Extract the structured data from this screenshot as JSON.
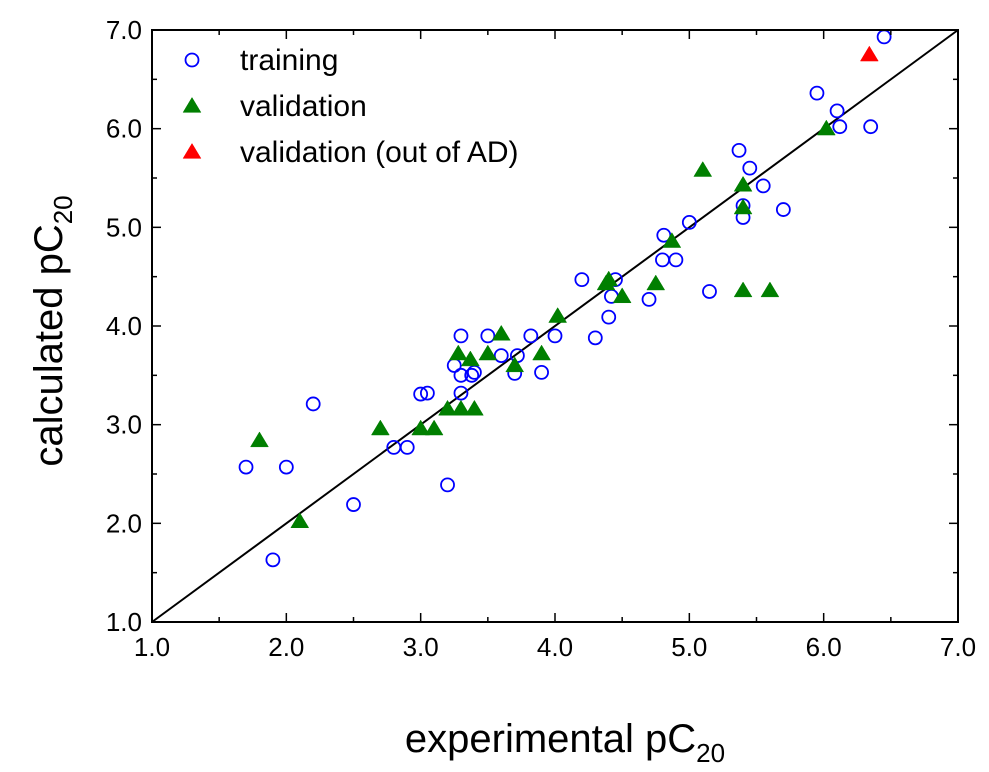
{
  "chart_data": {
    "type": "scatter",
    "xlabel": "experimental pC",
    "xlabel_sub": "20",
    "ylabel": "calculated pC",
    "ylabel_sub": "20",
    "xlim": [
      1.0,
      7.0
    ],
    "ylim": [
      1.0,
      7.0
    ],
    "xticks": [
      "1.0",
      "2.0",
      "3.0",
      "4.0",
      "5.0",
      "6.0",
      "7.0"
    ],
    "yticks": [
      "1.0",
      "2.0",
      "3.0",
      "4.0",
      "5.0",
      "6.0",
      "7.0"
    ],
    "grid": false,
    "legend_position": "top-left",
    "reference_line": [
      [
        1.0,
        1.0
      ],
      [
        7.0,
        7.0
      ]
    ],
    "series": [
      {
        "name": "training",
        "marker": "open-circle",
        "color": "#0000ff",
        "points": [
          [
            1.7,
            2.57
          ],
          [
            1.9,
            1.63
          ],
          [
            2.0,
            2.57
          ],
          [
            2.2,
            3.21
          ],
          [
            2.5,
            2.19
          ],
          [
            2.8,
            2.77
          ],
          [
            2.9,
            2.77
          ],
          [
            3.0,
            3.31
          ],
          [
            3.05,
            3.32
          ],
          [
            3.2,
            2.39
          ],
          [
            3.25,
            3.6
          ],
          [
            3.3,
            3.9
          ],
          [
            3.3,
            3.32
          ],
          [
            3.3,
            3.5
          ],
          [
            3.38,
            3.5
          ],
          [
            3.4,
            3.53
          ],
          [
            3.5,
            3.9
          ],
          [
            3.6,
            3.7
          ],
          [
            3.7,
            3.52
          ],
          [
            3.72,
            3.7
          ],
          [
            3.82,
            3.9
          ],
          [
            3.9,
            3.53
          ],
          [
            4.0,
            3.9
          ],
          [
            4.2,
            4.47
          ],
          [
            4.3,
            3.88
          ],
          [
            4.4,
            4.09
          ],
          [
            4.42,
            4.3
          ],
          [
            4.45,
            4.47
          ],
          [
            4.7,
            4.27
          ],
          [
            4.8,
            4.67
          ],
          [
            4.81,
            4.92
          ],
          [
            4.9,
            4.67
          ],
          [
            5.0,
            5.05
          ],
          [
            5.15,
            4.35
          ],
          [
            5.37,
            5.78
          ],
          [
            5.4,
            5.22
          ],
          [
            5.4,
            5.1
          ],
          [
            5.45,
            5.6
          ],
          [
            5.55,
            5.42
          ],
          [
            5.7,
            5.18
          ],
          [
            5.95,
            6.36
          ],
          [
            6.1,
            6.18
          ],
          [
            6.12,
            6.02
          ],
          [
            6.35,
            6.02
          ],
          [
            6.45,
            6.93
          ]
        ]
      },
      {
        "name": "validation",
        "marker": "filled-triangle",
        "color": "#007f00",
        "points": [
          [
            1.8,
            2.84
          ],
          [
            2.1,
            2.02
          ],
          [
            2.7,
            2.96
          ],
          [
            3.0,
            2.96
          ],
          [
            3.1,
            2.96
          ],
          [
            3.2,
            3.16
          ],
          [
            3.28,
            3.72
          ],
          [
            3.3,
            3.16
          ],
          [
            3.37,
            3.66
          ],
          [
            3.4,
            3.16
          ],
          [
            3.5,
            3.72
          ],
          [
            3.6,
            3.92
          ],
          [
            3.7,
            3.6
          ],
          [
            3.9,
            3.72
          ],
          [
            4.02,
            4.1
          ],
          [
            4.38,
            4.43
          ],
          [
            4.4,
            4.47
          ],
          [
            4.5,
            4.3
          ],
          [
            4.75,
            4.43
          ],
          [
            4.87,
            4.86
          ],
          [
            5.1,
            5.58
          ],
          [
            5.4,
            5.43
          ],
          [
            5.4,
            5.2
          ],
          [
            5.4,
            4.36
          ],
          [
            5.6,
            4.36
          ],
          [
            6.02,
            6.0
          ]
        ]
      },
      {
        "name": "validation (out of AD)",
        "marker": "filled-triangle",
        "color": "#ff0000",
        "points": [
          [
            6.34,
            6.75
          ]
        ]
      }
    ]
  }
}
